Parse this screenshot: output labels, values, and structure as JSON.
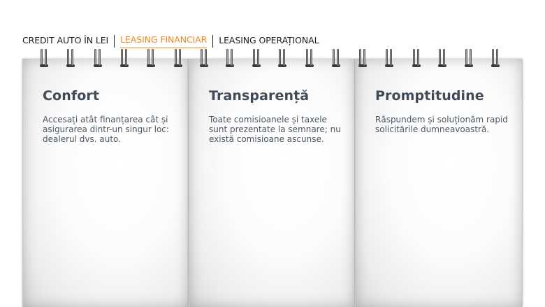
{
  "tabs": [
    {
      "label": "CREDIT AUTO ÎN LEI",
      "active": false
    },
    {
      "label": "LEASING FINANCIAR",
      "active": true
    },
    {
      "label": "LEASING OPERAȚIONAL",
      "active": false
    }
  ],
  "cards": [
    {
      "title": "Confort",
      "text": "Accesați atât finanțarea cât și asigurarea dintr-un singur loc: dealerul dvs. auto."
    },
    {
      "title": "Transparență",
      "text": "Toate comisioanele și taxele sunt prezentate la semnare; nu există comisioane ascunse."
    },
    {
      "title": "Promptitudine",
      "text": "Răspundem și soluționăm rapid solicitările dumneavoastră."
    }
  ],
  "colors": {
    "active_tab": "#f08a1e",
    "tab_text": "#1d1d1d",
    "card_title": "#3e4b57",
    "card_text": "#4a5661"
  }
}
